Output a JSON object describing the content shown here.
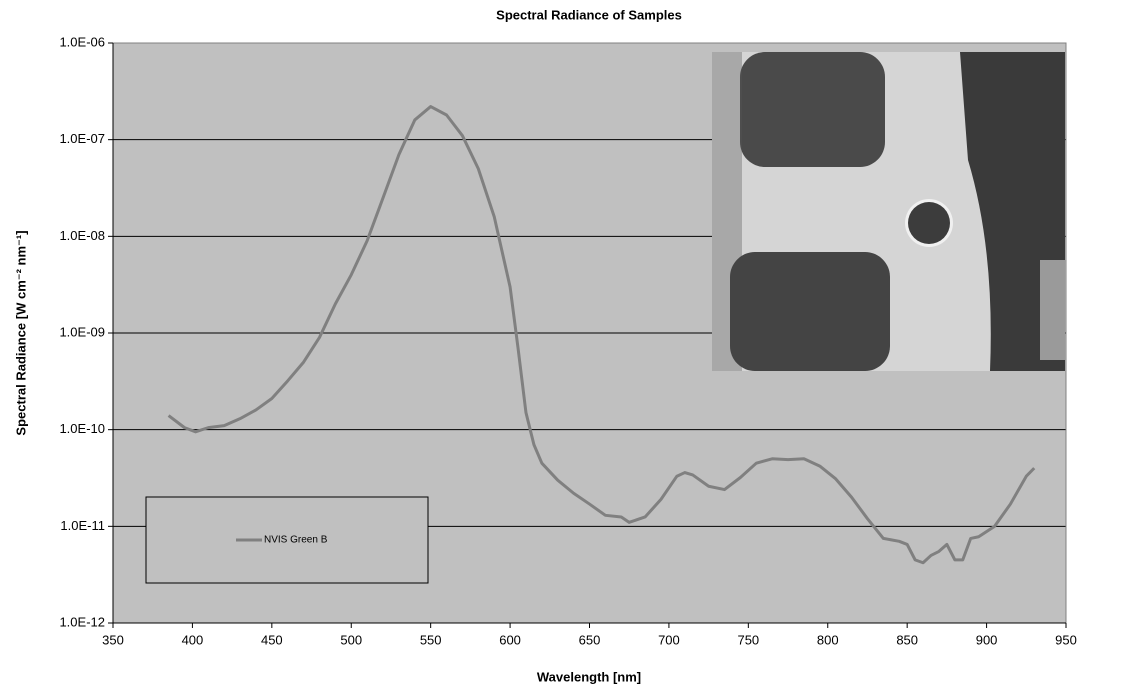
{
  "chart_data": {
    "type": "line",
    "title": "Spectral Radiance of Samples",
    "x_label": "Wavelength [nm]",
    "y_label": "Spectral Radiance [W cm⁻² nm⁻¹]",
    "yscale": "log",
    "grid": true,
    "legend": "lower left",
    "xlim": [
      350,
      950
    ],
    "xticks": [
      350,
      400,
      450,
      500,
      550,
      600,
      650,
      700,
      750,
      800,
      850,
      900,
      950
    ],
    "ylim": [
      1e-12,
      1e-06
    ],
    "yticks": [
      {
        "value": 1e-12,
        "label": "1.0E-12"
      },
      {
        "value": 1e-11,
        "label": "1.0E-11"
      },
      {
        "value": 1e-10,
        "label": "1.0E-10"
      },
      {
        "value": 1e-09,
        "label": "1.0E-09"
      },
      {
        "value": 1e-08,
        "label": "1.0E-08"
      },
      {
        "value": 1e-07,
        "label": "1.0E-07"
      },
      {
        "value": 1e-06,
        "label": "1.0E-06"
      }
    ],
    "x": [
      385,
      395,
      402,
      410,
      420,
      430,
      440,
      450,
      460,
      470,
      480,
      490,
      500,
      510,
      520,
      530,
      540,
      550,
      560,
      570,
      580,
      590,
      600,
      605,
      610,
      615,
      620,
      630,
      640,
      650,
      660,
      670,
      675,
      685,
      695,
      705,
      710,
      715,
      725,
      735,
      745,
      755,
      765,
      775,
      785,
      795,
      805,
      815,
      825,
      835,
      845,
      850,
      855,
      860,
      865,
      870,
      875,
      880,
      885,
      890,
      895,
      905,
      915,
      925,
      930
    ],
    "series": [
      {
        "name": "NVIS Green B",
        "color": "#808080",
        "values": [
          1.4e-10,
          1.05e-10,
          9.5e-11,
          1.05e-10,
          1.1e-10,
          1.3e-10,
          1.6e-10,
          2.1e-10,
          3.2e-10,
          5e-10,
          9e-10,
          2e-09,
          4e-09,
          9e-09,
          2.5e-08,
          7e-08,
          1.6e-07,
          2.2e-07,
          1.8e-07,
          1.1e-07,
          5e-08,
          1.6e-08,
          3e-09,
          7e-10,
          1.5e-10,
          7e-11,
          4.5e-11,
          3e-11,
          2.2e-11,
          1.7e-11,
          1.3e-11,
          1.25e-11,
          1.1e-11,
          1.25e-11,
          1.9e-11,
          3.3e-11,
          3.6e-11,
          3.4e-11,
          2.6e-11,
          2.4e-11,
          3.2e-11,
          4.5e-11,
          5e-11,
          4.9e-11,
          5e-11,
          4.2e-11,
          3.1e-11,
          2e-11,
          1.2e-11,
          7.5e-12,
          7e-12,
          6.5e-12,
          4.5e-12,
          4.2e-12,
          5e-12,
          5.5e-12,
          6.5e-12,
          4.5e-12,
          4.5e-12,
          7.5e-12,
          7.8e-12,
          1e-11,
          1.7e-11,
          3.3e-11,
          4e-11
        ]
      }
    ]
  }
}
